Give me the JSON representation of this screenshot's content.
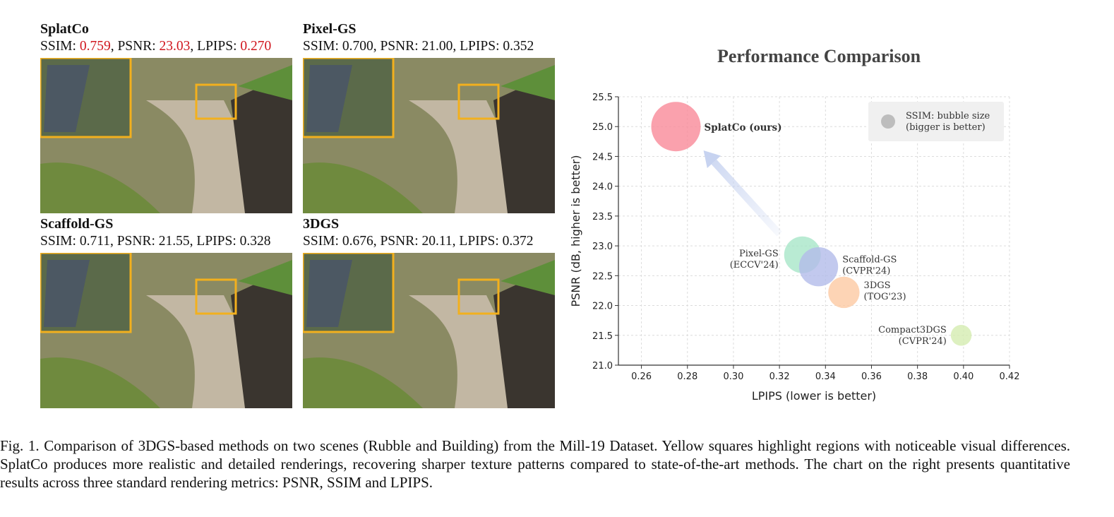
{
  "panels": [
    {
      "title": "SplatCo",
      "ssim_label": "SSIM: ",
      "ssim": "0.759",
      "psnr_label": ", PSNR: ",
      "psnr": "23.03",
      "lpips_label": ", LPIPS: ",
      "lpips": "0.270"
    },
    {
      "title": "Pixel-GS",
      "metrics": "SSIM: 0.700, PSNR: 21.00, LPIPS: 0.352"
    },
    {
      "title": "Scaffold-GS",
      "metrics": "SSIM: 0.711, PSNR: 21.55, LPIPS: 0.328"
    },
    {
      "title": "3DGS",
      "metrics": "SSIM: 0.676, PSNR: 20.11, LPIPS: 0.372"
    }
  ],
  "colors": {
    "highlight_box": "#f2b01e",
    "metric_highlight": "#d0161e",
    "splatco": "#f98a98",
    "pixelgs": "#a8e6c8",
    "scaffoldgs": "#b3bcea",
    "3dgs": "#fcc9a2",
    "compact3dgs": "#d4ecb0",
    "arrow": "#c7d3f0"
  },
  "chart_data": {
    "type": "scatter",
    "title": "Performance Comparison",
    "xlabel": "LPIPS (lower is better)",
    "ylabel": "PSNR (dB, higher is better)",
    "xlim": [
      0.25,
      0.42
    ],
    "ylim": [
      21.0,
      25.5
    ],
    "xticks": [
      "0.26",
      "0.28",
      "0.30",
      "0.32",
      "0.34",
      "0.36",
      "0.38",
      "0.40",
      "0.42"
    ],
    "yticks": [
      "21.0",
      "21.5",
      "22.0",
      "22.5",
      "23.0",
      "23.5",
      "24.0",
      "24.5",
      "25.0",
      "25.5"
    ],
    "grid": true,
    "size_encoding": "SSIM",
    "legend": {
      "text_line1": "SSIM: bubble size",
      "text_line2": "(bigger is better)",
      "position": "top-right"
    },
    "points": [
      {
        "label": "SplatCo (ours)",
        "venue": "",
        "x": 0.275,
        "y": 25.0,
        "ssim": 0.759,
        "color": "#f98a98"
      },
      {
        "label": "Pixel-GS",
        "venue": "(ECCV'24)",
        "x": 0.33,
        "y": 22.85,
        "ssim": 0.7,
        "color": "#a8e6c8"
      },
      {
        "label": "Scaffold-GS",
        "venue": "(CVPR'24)",
        "x": 0.337,
        "y": 22.65,
        "ssim": 0.711,
        "color": "#b3bcea"
      },
      {
        "label": "3DGS",
        "venue": "(TOG'23)",
        "x": 0.348,
        "y": 22.22,
        "ssim": 0.676,
        "color": "#fcc9a2"
      },
      {
        "label": "Compact3DGS",
        "venue": "(CVPR'24)",
        "x": 0.399,
        "y": 21.5,
        "ssim": 0.63,
        "color": "#d4ecb0"
      }
    ],
    "arrow": {
      "from": [
        0.32,
        23.2
      ],
      "to": [
        0.287,
        24.6
      ]
    }
  },
  "caption": "Fig. 1.  Comparison of 3DGS-based methods on two scenes (Rubble and Building) from the Mill-19 Dataset. Yellow squares highlight regions with noticeable visual differences. SplatCo produces more realistic and detailed renderings, recovering sharper texture patterns compared to state-of-the-art methods. The chart on the right presents quantitative results across three standard rendering metrics: PSNR, SSIM and LPIPS."
}
